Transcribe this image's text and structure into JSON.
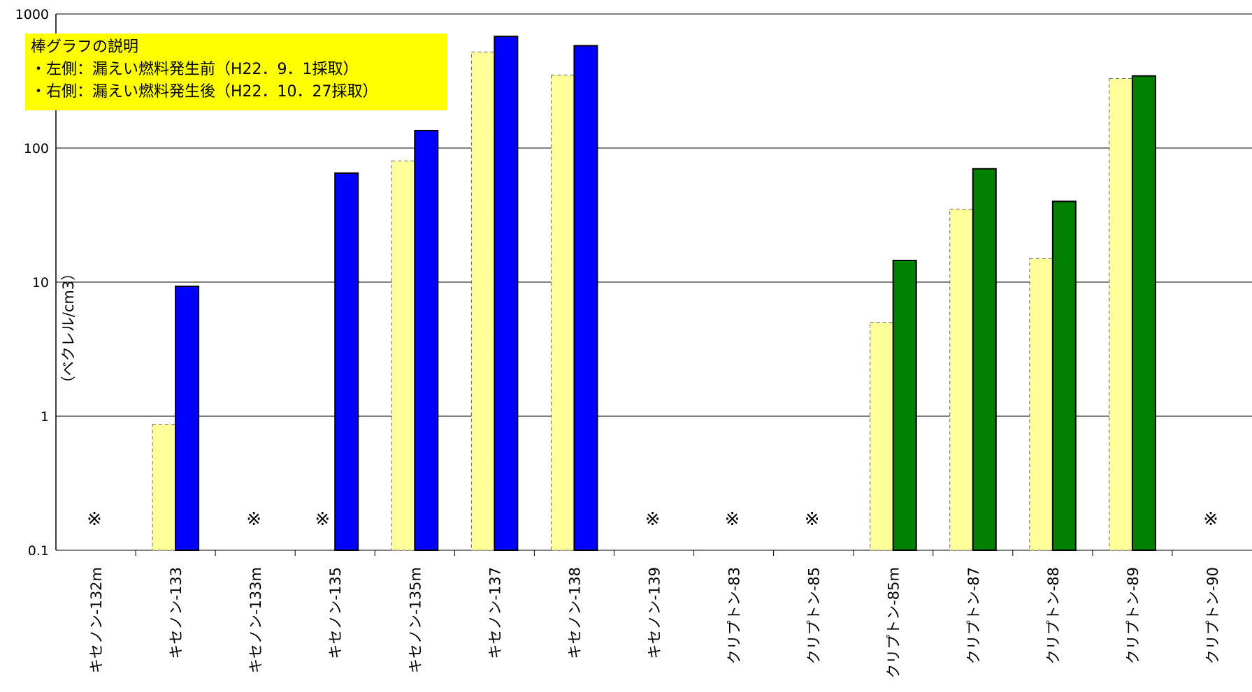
{
  "chart_data": {
    "type": "bar",
    "title": "",
    "xlabel": "",
    "ylabel": "（ベクレル/cm3）",
    "yscale": "log",
    "ylim": [
      0.1,
      1000
    ],
    "yticks": [
      "0.1",
      "1",
      "10",
      "100",
      "1000"
    ],
    "grid": true,
    "categories": [
      "キセノン-132m",
      "キセノン-133",
      "キセノン-133m",
      "キセノン-135",
      "キセノン-135m",
      "キセノン-137",
      "キセノン-138",
      "キセノン-139",
      "クリプトン-83",
      "クリプトン-85",
      "クリプトン-85m",
      "クリプトン-87",
      "クリプトン-88",
      "クリプトン-89",
      "クリプトン-90"
    ],
    "series": [
      {
        "name": "左側：漏えい燃料発生前（H22．9．1採取）",
        "values": [
          null,
          0.87,
          null,
          null,
          80,
          520,
          350,
          null,
          null,
          null,
          5,
          35,
          15,
          330,
          null
        ]
      },
      {
        "name": "右側：漏えい燃料発生後（H22．10．27採取）",
        "values": [
          null,
          9.3,
          null,
          65,
          135,
          680,
          580,
          null,
          null,
          null,
          14.5,
          70,
          40,
          345,
          null
        ]
      }
    ],
    "not_detected_marker": "※",
    "legend": {
      "title": "棒グラフの説明",
      "lines": [
        "・左側：漏えい燃料発生前（H22．9．1採取）",
        "・右側：漏えい燃料発生後（H22．10．27採取）"
      ],
      "placement": "top-left"
    },
    "colors": {
      "before": "#ffff99",
      "after_xenon": "#0000ff",
      "after_krypton": "#008000"
    }
  }
}
